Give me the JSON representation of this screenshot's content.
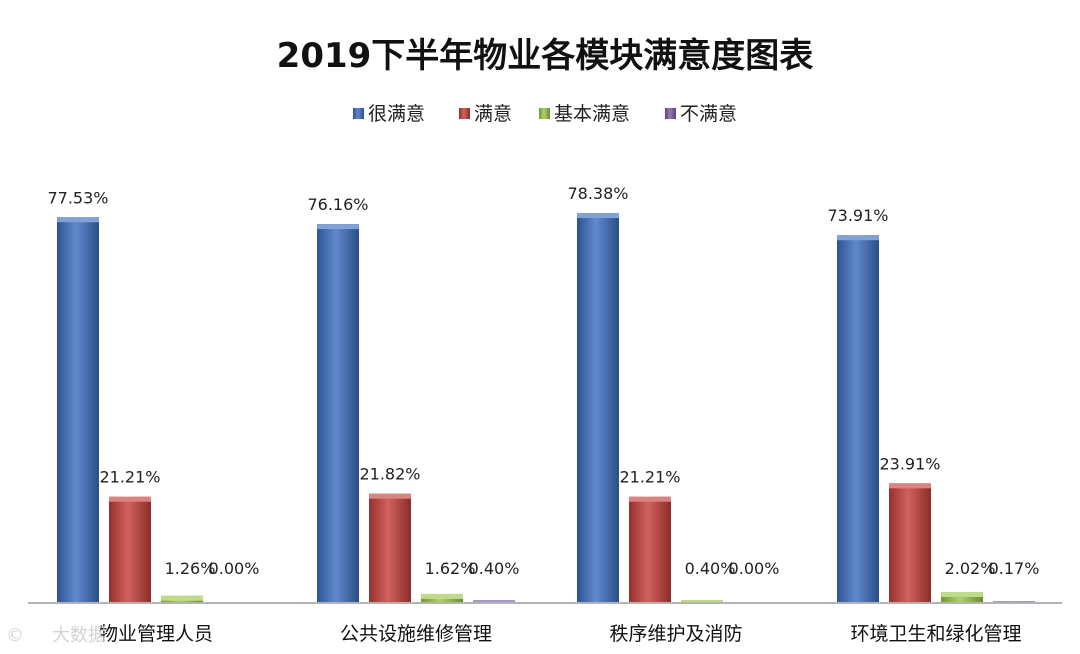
{
  "chart_data": {
    "type": "bar",
    "title": "2019下半年物业各模块满意度图表",
    "categories": [
      "物业管理人员",
      "公共设施维修管理",
      "秩序维护及消防",
      "环境卫生和绿化管理"
    ],
    "series": [
      {
        "name": "很满意",
        "color": "#3d6fc2",
        "values": [
          77.53,
          76.16,
          78.38,
          73.91
        ],
        "labels": [
          "77.53%",
          "76.16%",
          "78.38%",
          "73.91%"
        ]
      },
      {
        "name": "满意",
        "color": "#c7403b",
        "values": [
          21.21,
          21.82,
          21.21,
          23.91
        ],
        "labels": [
          "21.21%",
          "21.82%",
          "21.21%",
          "23.91%"
        ]
      },
      {
        "name": "基本满意",
        "color": "#9dc74a",
        "values": [
          1.26,
          1.62,
          0.4,
          2.02
        ],
        "labels": [
          "1.26%",
          "1.62%",
          "0.40%",
          "2.02%"
        ]
      },
      {
        "name": "不满意",
        "color": "#7e5ca6",
        "values": [
          0.0,
          0.4,
          0.0,
          0.17
        ],
        "labels": [
          "0.00%",
          "0.40%",
          "0.00%",
          "0.17%"
        ]
      }
    ],
    "legend_position": "top",
    "grid": false,
    "ylim": [
      0,
      80
    ]
  },
  "watermark": "大数据"
}
